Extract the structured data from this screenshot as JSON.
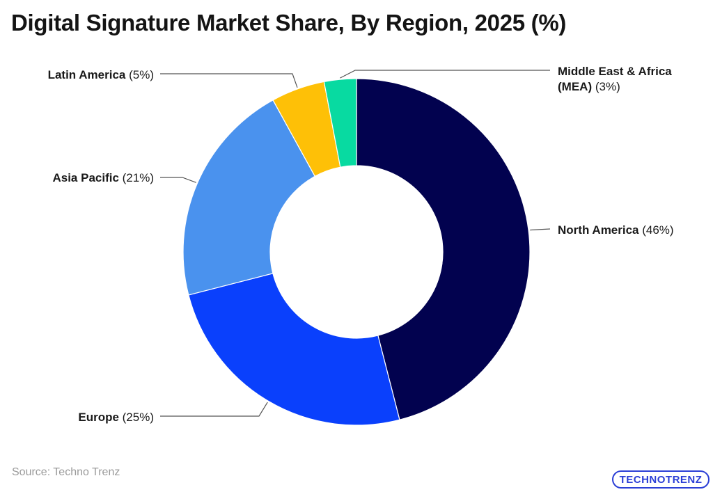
{
  "title": "Digital Signature Market Share, By Region, 2025 (%)",
  "source": "Source: Techno Trenz",
  "logo_text": "TECHNOTRENZ",
  "chart_data": {
    "type": "pie",
    "variant": "donut",
    "title": "Digital Signature Market Share, By Region, 2025 (%)",
    "slices": [
      {
        "label": "North America",
        "value": 46,
        "color": "#02024f"
      },
      {
        "label": "Europe",
        "value": 25,
        "color": "#0a40fc"
      },
      {
        "label": "Asia Pacific",
        "value": 21,
        "color": "#4a92ee"
      },
      {
        "label": "Latin America",
        "value": 5,
        "color": "#fec007"
      },
      {
        "label": "Middle East & Africa (MEA)",
        "value": 3,
        "color": "#08daa1"
      }
    ],
    "value_suffix": "%",
    "legend": "none"
  }
}
